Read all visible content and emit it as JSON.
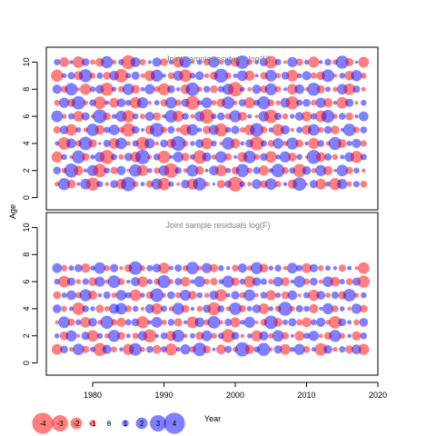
{
  "chart_data": {
    "type": "scatter",
    "y_axis_label": "Age",
    "x_axis_label": "Year",
    "x_range": [
      1973.5,
      2020
    ],
    "x_ticks": [
      1980,
      1990,
      2000,
      2010,
      2020
    ],
    "y_range": [
      -0.9,
      11.1
    ],
    "y_ticks": [
      0,
      2,
      4,
      6,
      8,
      10
    ],
    "colors": {
      "positive": "#0000ff",
      "negative": "#ff0000",
      "tick_text": "#000000",
      "panel_title": "#808080"
    },
    "legend": {
      "position": "bottom-left",
      "values": [
        "-4",
        "-3",
        "-2",
        "-1",
        "0",
        "1",
        "2",
        "3",
        "4"
      ]
    },
    "panels": [
      {
        "title": "Joint sample residuals log(N)",
        "years": [
          1975,
          2018
        ],
        "ages": [
          1,
          10
        ],
        "residuals": [
          [
            -0.6,
            2.1,
            -1.4,
            0.3,
            1.8,
            -2.3,
            0.9,
            -0.4,
            1.2,
            -1.7,
            2.6,
            -0.8,
            0.5,
            -1.1,
            1.9,
            -2.2,
            0.7,
            -0.3,
            1.4,
            -1.9,
            2.3,
            -0.6,
            0.2,
            -1.3,
            1.1,
            -2.7,
            0.8,
            -0.5,
            1.6,
            -1.2,
            2.0,
            -0.9,
            0.4,
            -1.5,
            2.4,
            -0.2,
            1.3,
            -1.8,
            0.6,
            -2.1,
            1.7,
            -0.7,
            0.9,
            -1.0
          ],
          [
            1.2,
            -0.7,
            2.5,
            -1.6,
            0.4,
            1.9,
            -2.4,
            0.8,
            -1.1,
            1.5,
            -0.3,
            2.2,
            -1.9,
            0.6,
            -0.9,
            1.8,
            -2.6,
            1.0,
            -0.5,
            2.1,
            -1.4,
            0.3,
            1.6,
            -2.0,
            0.7,
            -1.2,
            2.3,
            -0.8,
            1.1,
            -1.7,
            0.5,
            2.4,
            -1.0,
            0.9,
            -2.3,
            1.4,
            -0.6,
            1.9,
            -1.5,
            0.2,
            2.0,
            -1.1,
            0.8,
            -0.4
          ],
          [
            -1.9,
            0.8,
            -0.3,
            2.3,
            -1.2,
            0.6,
            1.7,
            -2.5,
            0.9,
            -0.7,
            1.3,
            -1.8,
            2.6,
            -0.5,
            1.0,
            -2.2,
            0.4,
            1.8,
            -1.3,
            0.7,
            -2.4,
            1.5,
            -0.6,
            2.0,
            -1.1,
            0.3,
            -1.7,
            2.2,
            -0.9,
            1.2,
            -2.0,
            0.6,
            1.9,
            -1.4,
            0.8,
            -0.2,
            2.5,
            -1.6,
            1.1,
            -0.8,
            0.5,
            1.6,
            -2.1,
            0.9
          ],
          [
            0.5,
            -2.2,
            1.6,
            -0.9,
            2.4,
            -1.3,
            0.2,
            1.1,
            -1.8,
            2.0,
            -0.6,
            0.9,
            -2.3,
            1.7,
            -0.4,
            1.2,
            -1.5,
            2.7,
            -0.8,
            0.6,
            1.4,
            -2.0,
            0.8,
            -0.3,
            2.2,
            -1.6,
            0.5,
            1.3,
            -2.5,
            0.9,
            -1.0,
            1.8,
            -0.7,
            2.1,
            -1.2,
            0.4,
            -1.9,
            1.0,
            -0.5,
            2.3,
            -1.4,
            0.7,
            1.5,
            -0.9
          ],
          [
            -1.1,
            1.4,
            -2.0,
            0.7,
            -0.5,
            2.2,
            -1.6,
            0.9,
            1.8,
            -0.8,
            -2.4,
            1.2,
            0.3,
            -1.5,
            2.5,
            -0.9,
            1.1,
            -0.6,
            -1.9,
            2.0,
            0.5,
            -1.3,
            1.7,
            -2.3,
            0.8,
            1.3,
            -0.7,
            -1.8,
            2.4,
            -1.0,
            0.6,
            -2.1,
            1.5,
            -0.4,
            0.9,
            -1.6,
            2.0,
            -0.8,
            1.2,
            -1.4,
            0.3,
            2.2,
            -0.9,
            1.0
          ],
          [
            2.0,
            -0.6,
            0.9,
            -1.8,
            1.3,
            -0.4,
            2.5,
            -1.2,
            0.6,
            1.9,
            -2.1,
            0.8,
            -0.7,
            1.5,
            -1.3,
            0.4,
            2.2,
            -1.9,
            1.0,
            -0.5,
            1.7,
            -2.6,
            0.7,
            1.2,
            -0.9,
            2.1,
            -1.5,
            0.5,
            -0.3,
            1.8,
            -2.4,
            1.1,
            -0.8,
            0.6,
            1.4,
            -1.7,
            0.9,
            -2.0,
            2.3,
            -0.6,
            1.0,
            -1.2,
            0.4,
            1.6
          ],
          [
            -0.8,
            1.7,
            -1.3,
            2.4,
            -0.6,
            1.0,
            -2.2,
            0.5,
            -1.6,
            1.4,
            0.8,
            -2.0,
            1.9,
            -0.4,
            0.7,
            -1.1,
            2.0,
            -0.9,
            1.3,
            -2.5,
            0.6,
            1.8,
            -0.7,
            -1.4,
            2.2,
            -0.5,
            1.1,
            -1.9,
            0.8,
            2.3,
            -1.0,
            -0.6,
            1.6,
            -2.3,
            0.9,
            1.2,
            -0.8,
            1.7,
            -1.5,
            0.4,
            -2.0,
            1.3,
            -0.3,
            0.8
          ],
          [
            1.5,
            -1.0,
            2.2,
            -0.3,
            -1.9,
            0.8,
            1.4,
            -2.3,
            0.6,
            -0.9,
            2.0,
            -1.4,
            0.5,
            1.7,
            -0.8,
            -2.1,
            1.2,
            0.4,
            -1.6,
            2.4,
            -0.7,
            1.0,
            -1.2,
            0.9,
            1.9,
            -2.6,
            0.6,
            -0.5,
            1.5,
            -1.1,
            2.1,
            -0.9,
            0.3,
            -1.8,
            1.6,
            -0.4,
            2.3,
            -1.3,
            0.7,
            -0.6,
            1.8,
            -2.0,
            1.1,
            -0.5
          ],
          [
            -2.1,
            0.6,
            1.1,
            -1.5,
            2.3,
            -0.8,
            0.9,
            -1.2,
            1.6,
            -2.4,
            0.7,
            1.3,
            -0.5,
            -1.8,
            2.1,
            0.4,
            -1.0,
            1.7,
            -2.2,
            0.8,
            1.4,
            -0.6,
            -1.3,
            2.5,
            -0.9,
            0.5,
            1.8,
            -1.7,
            0.3,
            -1.1,
            2.0,
            -0.7,
            1.2,
            -2.0,
            0.6,
            1.5,
            -0.9,
            -1.4,
            2.2,
            -0.4,
            0.8,
            -1.6,
            1.9,
            -0.8
          ],
          [
            0.9,
            -1.6,
            0.4,
            -2.0,
            1.2,
            -0.7,
            -1.4,
            2.1,
            -0.5,
            0.8,
            -2.5,
            1.6,
            -0.9,
            0.3,
            1.5,
            -1.2,
            0.6,
            -1.8,
            2.0,
            -0.4,
            0.7,
            -1.0,
            1.9,
            -0.6,
            1.1,
            -1.5,
            2.4,
            -0.8,
            0.5,
            1.3,
            -2.2,
            0.9,
            -0.3,
            1.7,
            -1.1,
            0.6,
            -1.9,
            0.4,
            1.0,
            -0.7,
            2.3,
            -1.3,
            0.2,
            -1.8
          ]
        ]
      },
      {
        "title": "Joint sample residuals log(F)",
        "years": [
          1975,
          2018
        ],
        "ages": [
          1,
          7
        ],
        "residuals": [
          [
            -1.8,
            1.2,
            -0.5,
            2.0,
            -1.1,
            0.7,
            -2.3,
            1.5,
            -0.8,
            0.4,
            -1.9,
            2.2,
            -0.6,
            1.0,
            -1.4,
            0.9,
            -2.1,
            0.5,
            1.7,
            -0.9,
            2.4,
            -1.2,
            0.3,
            -1.6,
            1.1,
            -0.7,
            2.6,
            -1.5,
            0.8,
            2.3,
            -0.4,
            1.3,
            -1.8,
            0.6,
            1.9,
            -1.0,
            0.5,
            -2.2,
            1.4,
            -0.6,
            0.9,
            -1.3,
            1.6,
            -1.9
          ],
          [
            0.6,
            -1.4,
            1.9,
            -0.3,
            1.3,
            -2.0,
            0.8,
            -0.6,
            2.1,
            -1.2,
            0.5,
            -0.9,
            1.6,
            -2.3,
            0.4,
            1.0,
            -1.7,
            2.2,
            -0.5,
            0.7,
            -1.3,
            1.8,
            -0.8,
            0.9,
            -2.4,
            1.2,
            -0.4,
            0.6,
            -1.9,
            1.5,
            -0.7,
            2.0,
            -1.1,
            0.3,
            -1.6,
            0.9,
            1.7,
            -0.5,
            -1.2,
            2.1,
            -0.8,
            0.4,
            -1.5,
            1.0
          ],
          [
            -0.4,
            2.0,
            -1.1,
            0.8,
            -1.8,
            1.4,
            -0.6,
            2.3,
            -0.9,
            -1.5,
            0.9,
            1.2,
            -2.1,
            0.5,
            1.8,
            -0.7,
            1.0,
            -1.3,
            0.4,
            -2.0,
            1.6,
            -0.8,
            2.2,
            -0.5,
            1.1,
            -1.7,
            0.6,
            1.9,
            -0.3,
            -1.0,
            2.4,
            -1.4,
            0.7,
            1.3,
            -0.9,
            -1.6,
            0.8,
            1.5,
            -0.6,
            -2.2,
            1.2,
            0.5,
            -0.8,
            1.4
          ],
          [
            1.4,
            -0.8,
            0.5,
            -2.2,
            1.0,
            0.6,
            -1.3,
            -0.7,
            1.7,
            2.0,
            -1.0,
            0.8,
            -0.4,
            1.5,
            -1.9,
            0.9,
            -0.6,
            2.1,
            -1.2,
            0.4,
            -0.8,
            1.3,
            -2.3,
            1.0,
            -0.5,
            2.2,
            -1.1,
            0.7,
            1.4,
            -1.8,
            0.6,
            -0.9,
            2.5,
            -0.7,
            1.1,
            0.8,
            -1.5,
            0.3,
            1.9,
            -1.0,
            0.6,
            -0.4,
            1.7,
            -1.2
          ],
          [
            -1.2,
            0.7,
            1.6,
            -0.9,
            2.1,
            -1.5,
            0.4,
            1.1,
            -0.7,
            1.8,
            0.9,
            -2.0,
            0.6,
            -1.1,
            2.4,
            -0.5,
            1.2,
            -0.8,
            1.9,
            -1.4,
            0.8,
            -0.6,
            1.5,
            -2.1,
            0.5,
            1.3,
            -0.9,
            2.0,
            -0.4,
            1.0,
            -1.7,
            0.7,
            -1.2,
            1.6,
            -0.3,
            0.9,
            -1.9,
            1.4,
            -0.7,
            1.1,
            -1.3,
            2.2,
            -0.6,
            0.8
          ],
          [
            0.8,
            -2.0,
            1.3,
            -0.6,
            0.9,
            -1.4,
            1.7,
            -0.5,
            2.2,
            -1.0,
            0.4,
            1.5,
            -1.8,
            0.7,
            -0.9,
            2.3,
            -0.6,
            1.1,
            -1.6,
            0.5,
            1.9,
            -0.8,
            -1.1,
            0.6,
            2.1,
            -1.3,
            0.8,
            -2.0,
            1.4,
            0.9,
            -0.7,
            1.6,
            -1.4,
            0.4,
            2.0,
            -0.9,
            1.2,
            -0.5,
            1.8,
            -1.6,
            0.7,
            -1.0,
            1.3,
            -2.1
          ],
          [
            1.6,
            -0.9,
            0.7,
            1.2,
            -1.5,
            0.6,
            2.0,
            -0.8,
            1.3,
            -0.4,
            -1.2,
            2.4,
            -0.7,
            0.9,
            1.4,
            -1.9,
            0.5,
            1.1,
            -0.8,
            2.2,
            -0.6,
            1.7,
            -1.3,
            0.8,
            0.4,
            -1.0,
            1.5,
            -0.7,
            2.1,
            -1.4,
            0.6,
            1.0,
            -0.5,
            1.8,
            0.9,
            -1.6,
            1.3,
            -0.8,
            0.7,
            0.4,
            -1.1,
            0.5,
            -0.3,
            -2.0
          ]
        ]
      }
    ]
  }
}
